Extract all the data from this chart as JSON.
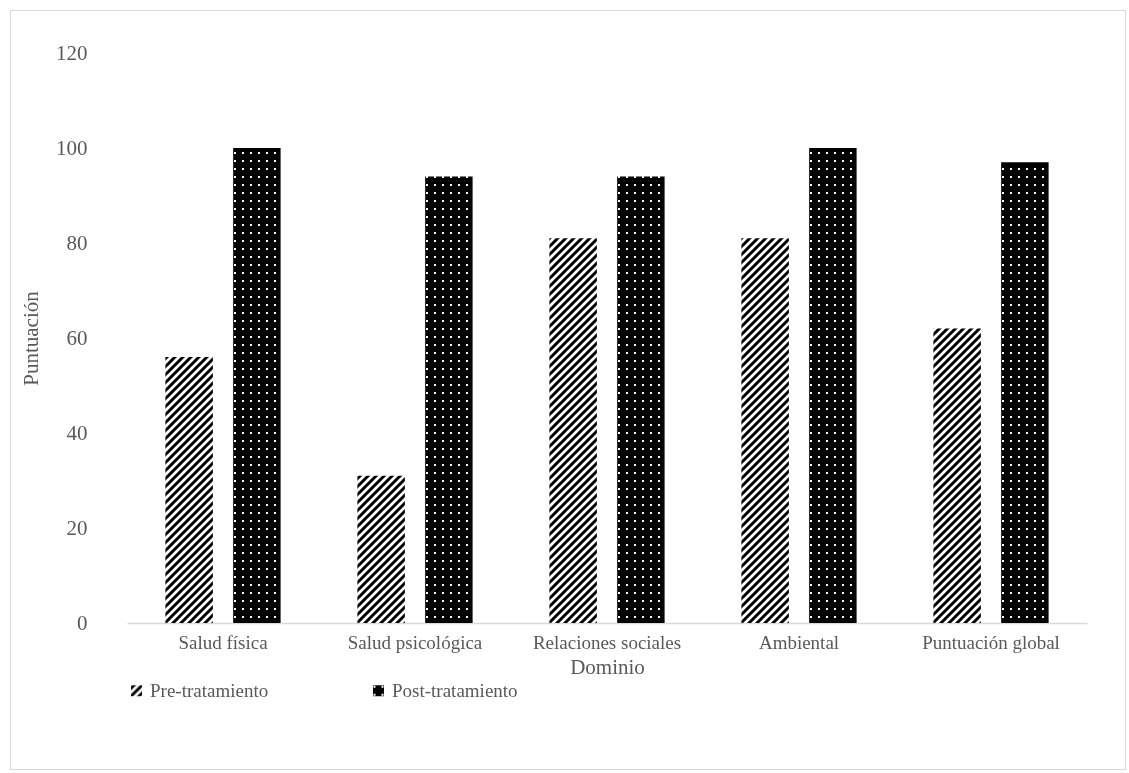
{
  "chart_data": {
    "type": "bar",
    "xlabel": "Dominio",
    "ylabel": "Puntuación",
    "categories": [
      "Salud física",
      "Salud psicológica",
      "Relaciones sociales",
      "Ambiental",
      "Puntuación global"
    ],
    "series": [
      {
        "name": "Pre-tratamiento",
        "color": "#000000",
        "values": [
          56,
          31,
          81,
          81,
          62
        ]
      },
      {
        "name": "Post-tratamiento",
        "color": "#000000",
        "values": [
          100,
          94,
          94,
          100,
          97
        ]
      }
    ],
    "ylim": [
      0,
      120
    ],
    "yticks": [
      0,
      20,
      40,
      60,
      80,
      100,
      120
    ],
    "grid": false,
    "legend": "bottom"
  }
}
